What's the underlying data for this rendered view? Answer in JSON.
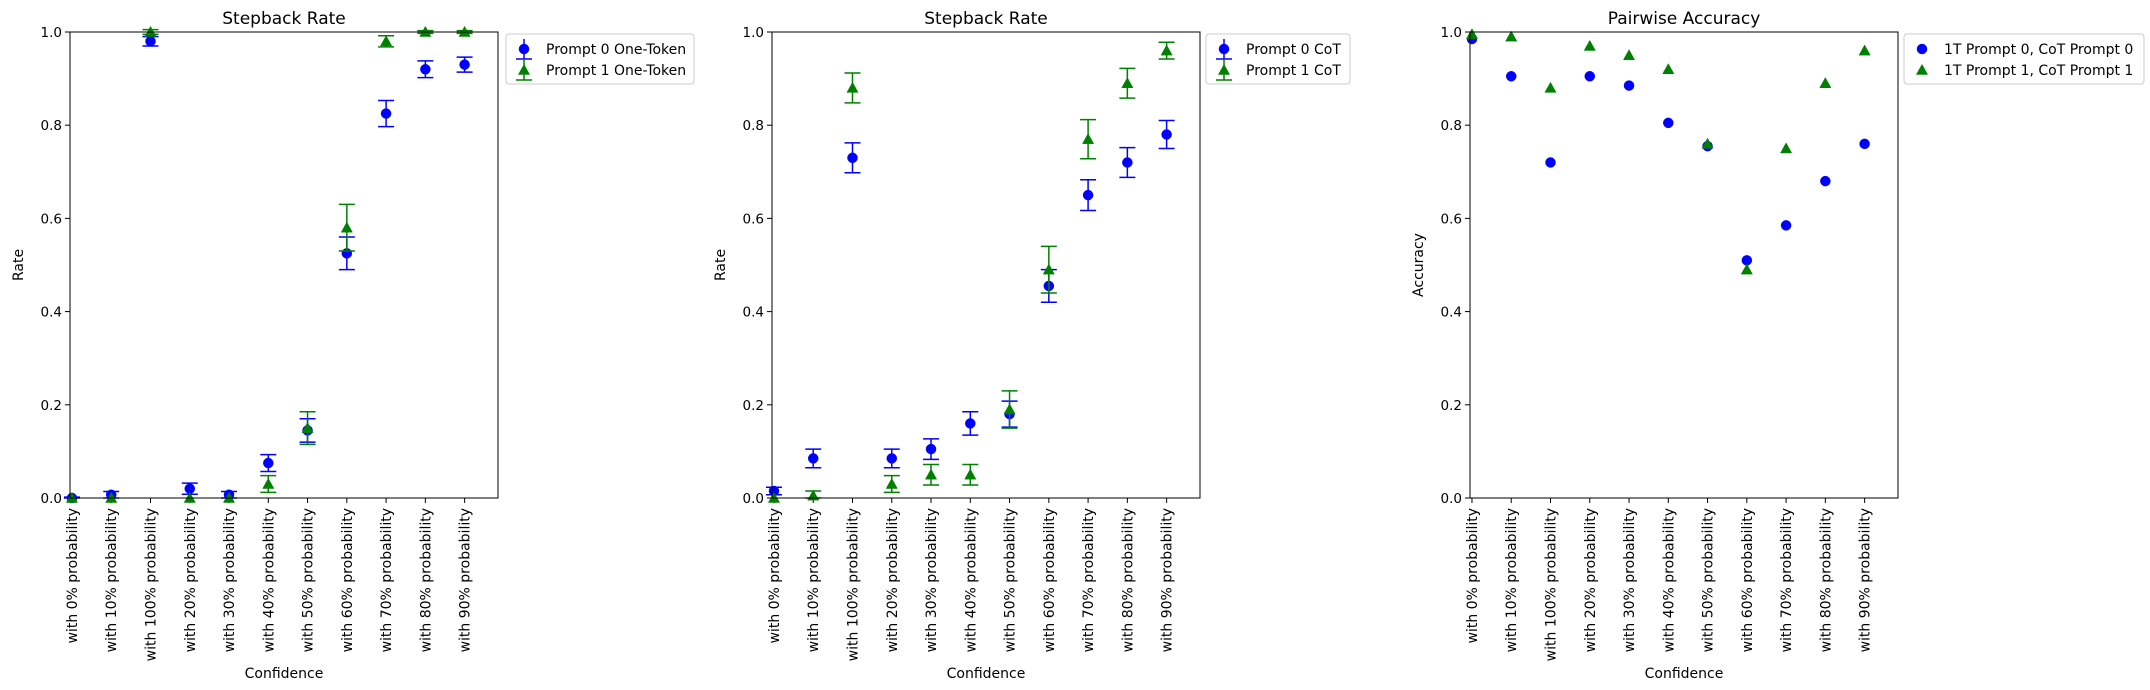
{
  "chart_data": [
    {
      "type": "scatter",
      "title": "Stepback Rate",
      "xlabel": "Confidence",
      "ylabel": "Rate",
      "ylim": [
        0,
        1
      ],
      "yticks": [
        "0.0",
        "0.2",
        "0.4",
        "0.6",
        "0.8",
        "1.0"
      ],
      "categories": [
        "with 0% probability",
        "with 10% probability",
        "with 100% probability",
        "with 20% probability",
        "with 30% probability",
        "with 40% probability",
        "with 50% probability",
        "with 60% probability",
        "with 70% probability",
        "with 80% probability",
        "with 90% probability"
      ],
      "legend_position": "outside-top-right",
      "series": [
        {
          "name": "Prompt 0 One-Token",
          "marker": "circle",
          "color": "#0000ff",
          "values": [
            0.0,
            0.007,
            0.98,
            0.02,
            0.007,
            0.075,
            0.145,
            0.525,
            0.825,
            0.92,
            0.93
          ],
          "errors": [
            0.002,
            0.007,
            0.01,
            0.012,
            0.007,
            0.018,
            0.025,
            0.035,
            0.028,
            0.018,
            0.016
          ]
        },
        {
          "name": "Prompt 1 One-Token",
          "marker": "triangle",
          "color": "#008000",
          "values": [
            0.0,
            0.0,
            1.0,
            0.0,
            0.0,
            0.03,
            0.15,
            0.58,
            0.98,
            1.0,
            1.0
          ],
          "errors": [
            0.0,
            0.0,
            0.005,
            0.0,
            0.0,
            0.018,
            0.035,
            0.05,
            0.012,
            0.003,
            0.003
          ]
        }
      ]
    },
    {
      "type": "scatter",
      "title": "Stepback Rate",
      "xlabel": "Confidence",
      "ylabel": "Rate",
      "ylim": [
        0,
        1
      ],
      "yticks": [
        "0.0",
        "0.2",
        "0.4",
        "0.6",
        "0.8",
        "1.0"
      ],
      "categories": [
        "with 0% probability",
        "with 10% probability",
        "with 100% probability",
        "with 20% probability",
        "with 30% probability",
        "with 40% probability",
        "with 50% probability",
        "with 60% probability",
        "with 70% probability",
        "with 80% probability",
        "with 90% probability"
      ],
      "legend_position": "outside-top-right",
      "series": [
        {
          "name": "Prompt 0 CoT",
          "marker": "circle",
          "color": "#0000ff",
          "values": [
            0.015,
            0.085,
            0.73,
            0.085,
            0.105,
            0.16,
            0.18,
            0.455,
            0.65,
            0.72,
            0.78
          ],
          "errors": [
            0.008,
            0.02,
            0.032,
            0.02,
            0.022,
            0.025,
            0.028,
            0.035,
            0.033,
            0.032,
            0.03
          ]
        },
        {
          "name": "Prompt 1 CoT",
          "marker": "triangle",
          "color": "#008000",
          "values": [
            0.0,
            0.005,
            0.88,
            0.03,
            0.05,
            0.05,
            0.19,
            0.49,
            0.77,
            0.89,
            0.96
          ],
          "errors": [
            0.0,
            0.01,
            0.032,
            0.018,
            0.022,
            0.022,
            0.04,
            0.05,
            0.042,
            0.032,
            0.018
          ]
        }
      ]
    },
    {
      "type": "scatter",
      "title": "Pairwise Accuracy",
      "xlabel": "Confidence",
      "ylabel": "Accuracy",
      "ylim": [
        0,
        1
      ],
      "yticks": [
        "0.0",
        "0.2",
        "0.4",
        "0.6",
        "0.8",
        "1.0"
      ],
      "categories": [
        "with 0% probability",
        "with 10% probability",
        "with 100% probability",
        "with 20% probability",
        "with 30% probability",
        "with 40% probability",
        "with 50% probability",
        "with 60% probability",
        "with 70% probability",
        "with 80% probability",
        "with 90% probability"
      ],
      "legend_position": "outside-top-right",
      "series": [
        {
          "name": "1T Prompt 0, CoT Prompt 0",
          "marker": "circle",
          "color": "#0000ff",
          "values": [
            0.985,
            0.905,
            0.72,
            0.905,
            0.885,
            0.805,
            0.755,
            0.51,
            0.585,
            0.68,
            0.76
          ]
        },
        {
          "name": "1T Prompt 1, CoT Prompt 1",
          "marker": "triangle",
          "color": "#008000",
          "values": [
            0.995,
            0.99,
            0.88,
            0.97,
            0.95,
            0.92,
            0.76,
            0.49,
            0.75,
            0.89,
            0.96
          ]
        }
      ]
    }
  ]
}
